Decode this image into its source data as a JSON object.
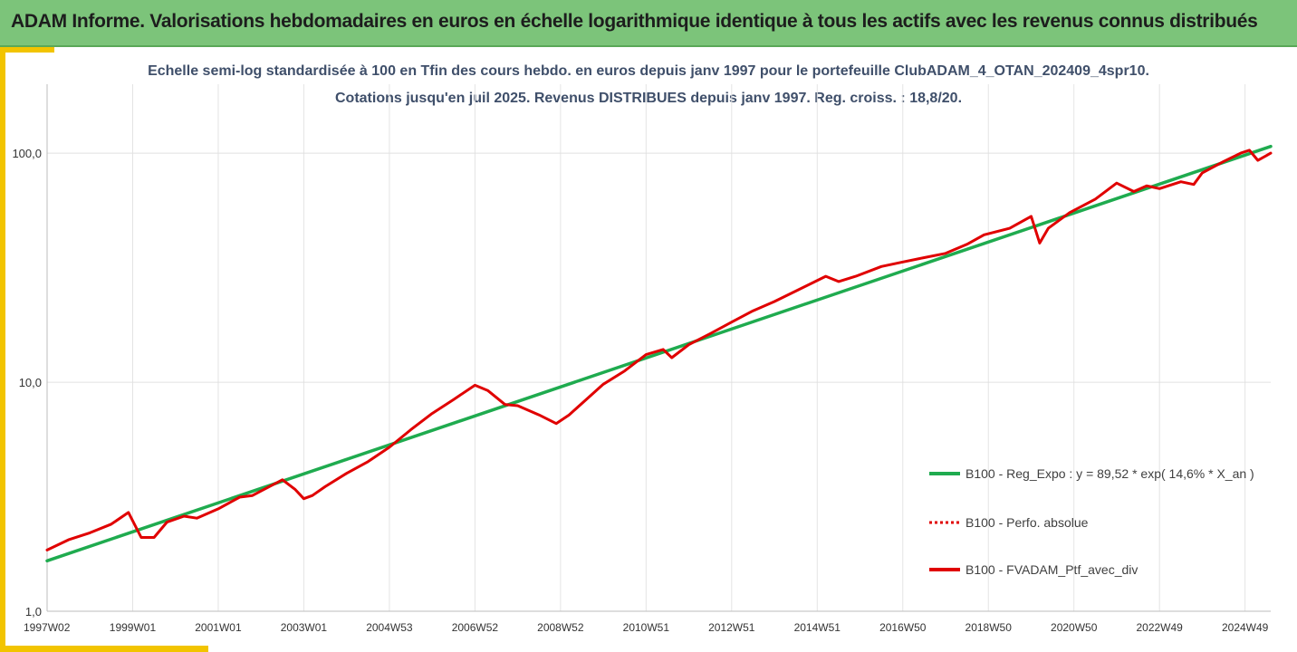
{
  "header": {
    "title": "ADAM Informe. Valorisations hebdomadaires en euros en échelle logarithmique identique à tous les actifs avec les revenus connus distribués"
  },
  "chart_data": {
    "type": "line",
    "subtitle_line1": "Echelle semi-log standardisée  à 100 en Tfin des cours hebdo.  en euros depuis janv 1997 pour le portefeuille ClubADAM_4_OTAN_202409_4spr10.",
    "subtitle_line2": "Cotations  jusqu'en juil 2025. Revenus DISTRIBUES depuis janv 1997. Reg. croiss. : 18,8/20.",
    "y_scale": "log",
    "ylim": [
      1,
      200
    ],
    "y_ticks": [
      {
        "value": 1,
        "label": "1,0"
      },
      {
        "value": 10,
        "label": "10,0"
      },
      {
        "value": 100,
        "label": "100,0"
      }
    ],
    "xlim": [
      1997.0,
      2025.6
    ],
    "x_ticks": [
      {
        "value": 1997.0,
        "label": "1997W02"
      },
      {
        "value": 1999.0,
        "label": "1999W01"
      },
      {
        "value": 2001.0,
        "label": "2001W01"
      },
      {
        "value": 2003.0,
        "label": "2003W01"
      },
      {
        "value": 2005.0,
        "label": "2004W53"
      },
      {
        "value": 2007.0,
        "label": "2006W52"
      },
      {
        "value": 2009.0,
        "label": "2008W52"
      },
      {
        "value": 2011.0,
        "label": "2010W51"
      },
      {
        "value": 2013.0,
        "label": "2012W51"
      },
      {
        "value": 2015.0,
        "label": "2014W51"
      },
      {
        "value": 2017.0,
        "label": "2016W50"
      },
      {
        "value": 2019.0,
        "label": "2018W50"
      },
      {
        "value": 2021.0,
        "label": "2020W50"
      },
      {
        "value": 2023.0,
        "label": "2022W49"
      },
      {
        "value": 2025.0,
        "label": "2024W49"
      }
    ],
    "grid": {
      "vertical": true,
      "horizontal": true
    },
    "legend_position": "right",
    "series": [
      {
        "name": "B100 - Reg_Expo : y = 89,52 * exp( 14,6% *  X_an )",
        "color": "#1fab4f",
        "style": "solid",
        "x": [
          1997.0,
          2025.6
        ],
        "y": [
          1.66,
          107.0
        ]
      },
      {
        "name": "B100 - Perfo. absolue",
        "color": "#e00000",
        "style": "dotted",
        "x": [],
        "y": []
      },
      {
        "name": "B100 - FVADAM_Ptf_avec_div",
        "color": "#e00000",
        "style": "solid",
        "x": [
          1997.0,
          1997.5,
          1998.0,
          1998.5,
          1998.9,
          1999.2,
          1999.5,
          1999.8,
          2000.2,
          2000.5,
          2001.0,
          2001.5,
          2001.8,
          2002.5,
          2002.8,
          2003.0,
          2003.2,
          2003.5,
          2004.0,
          2004.5,
          2005.0,
          2005.5,
          2006.0,
          2006.5,
          2007.0,
          2007.3,
          2007.7,
          2008.0,
          2008.5,
          2008.9,
          2009.2,
          2009.6,
          2010.0,
          2010.5,
          2011.0,
          2011.4,
          2011.6,
          2012.0,
          2012.5,
          2013.0,
          2013.5,
          2014.0,
          2014.5,
          2015.2,
          2015.5,
          2015.9,
          2016.5,
          2017.0,
          2017.5,
          2018.0,
          2018.5,
          2018.9,
          2019.5,
          2020.0,
          2020.2,
          2020.4,
          2020.9,
          2021.5,
          2022.0,
          2022.4,
          2022.7,
          2023.0,
          2023.5,
          2023.8,
          2024.0,
          2024.5,
          2024.9,
          2025.1,
          2025.3,
          2025.6
        ],
        "y": [
          1.85,
          2.05,
          2.2,
          2.4,
          2.7,
          2.1,
          2.1,
          2.45,
          2.6,
          2.55,
          2.8,
          3.15,
          3.2,
          3.75,
          3.4,
          3.1,
          3.2,
          3.5,
          4.0,
          4.5,
          5.2,
          6.2,
          7.3,
          8.4,
          9.7,
          9.2,
          8.0,
          7.9,
          7.2,
          6.6,
          7.2,
          8.4,
          9.8,
          11.2,
          13.2,
          13.9,
          12.8,
          14.6,
          16.3,
          18.3,
          20.5,
          22.5,
          25.0,
          29.0,
          27.5,
          29.0,
          32.0,
          33.5,
          35.0,
          36.5,
          40.0,
          44.0,
          47.0,
          53.0,
          40.5,
          47.0,
          55.0,
          63.0,
          74.0,
          68.0,
          72.0,
          70.0,
          75.0,
          73.0,
          82.0,
          92.0,
          100.0,
          103.0,
          93.0,
          100.0
        ]
      }
    ]
  }
}
